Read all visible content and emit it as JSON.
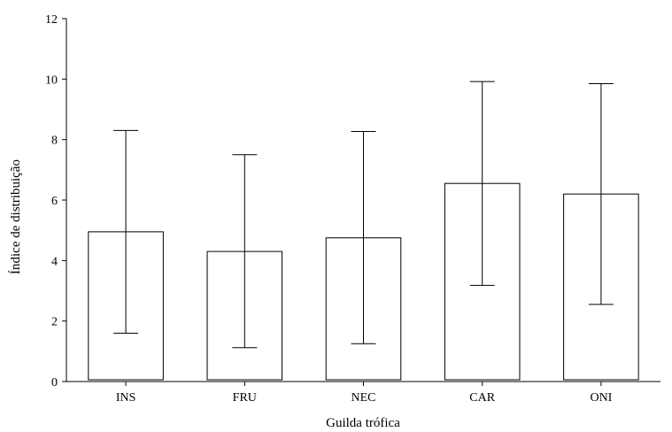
{
  "chart_data": {
    "type": "bar",
    "xlabel": "Guilda trófica",
    "ylabel": "Índice de distribuição",
    "ylim": [
      0,
      12
    ],
    "yticks": [
      "0",
      "2",
      "4",
      "6",
      "8",
      "10",
      "12"
    ],
    "grid": false,
    "legend": "none",
    "categories": [
      "INS",
      "FRU",
      "NEC",
      "CAR",
      "ONI"
    ],
    "values": [
      4.95,
      4.3,
      4.75,
      6.55,
      6.2
    ],
    "error_low": [
      1.6,
      1.12,
      1.25,
      3.18,
      2.55
    ],
    "error_high": [
      8.3,
      7.5,
      8.27,
      9.92,
      9.85
    ]
  }
}
